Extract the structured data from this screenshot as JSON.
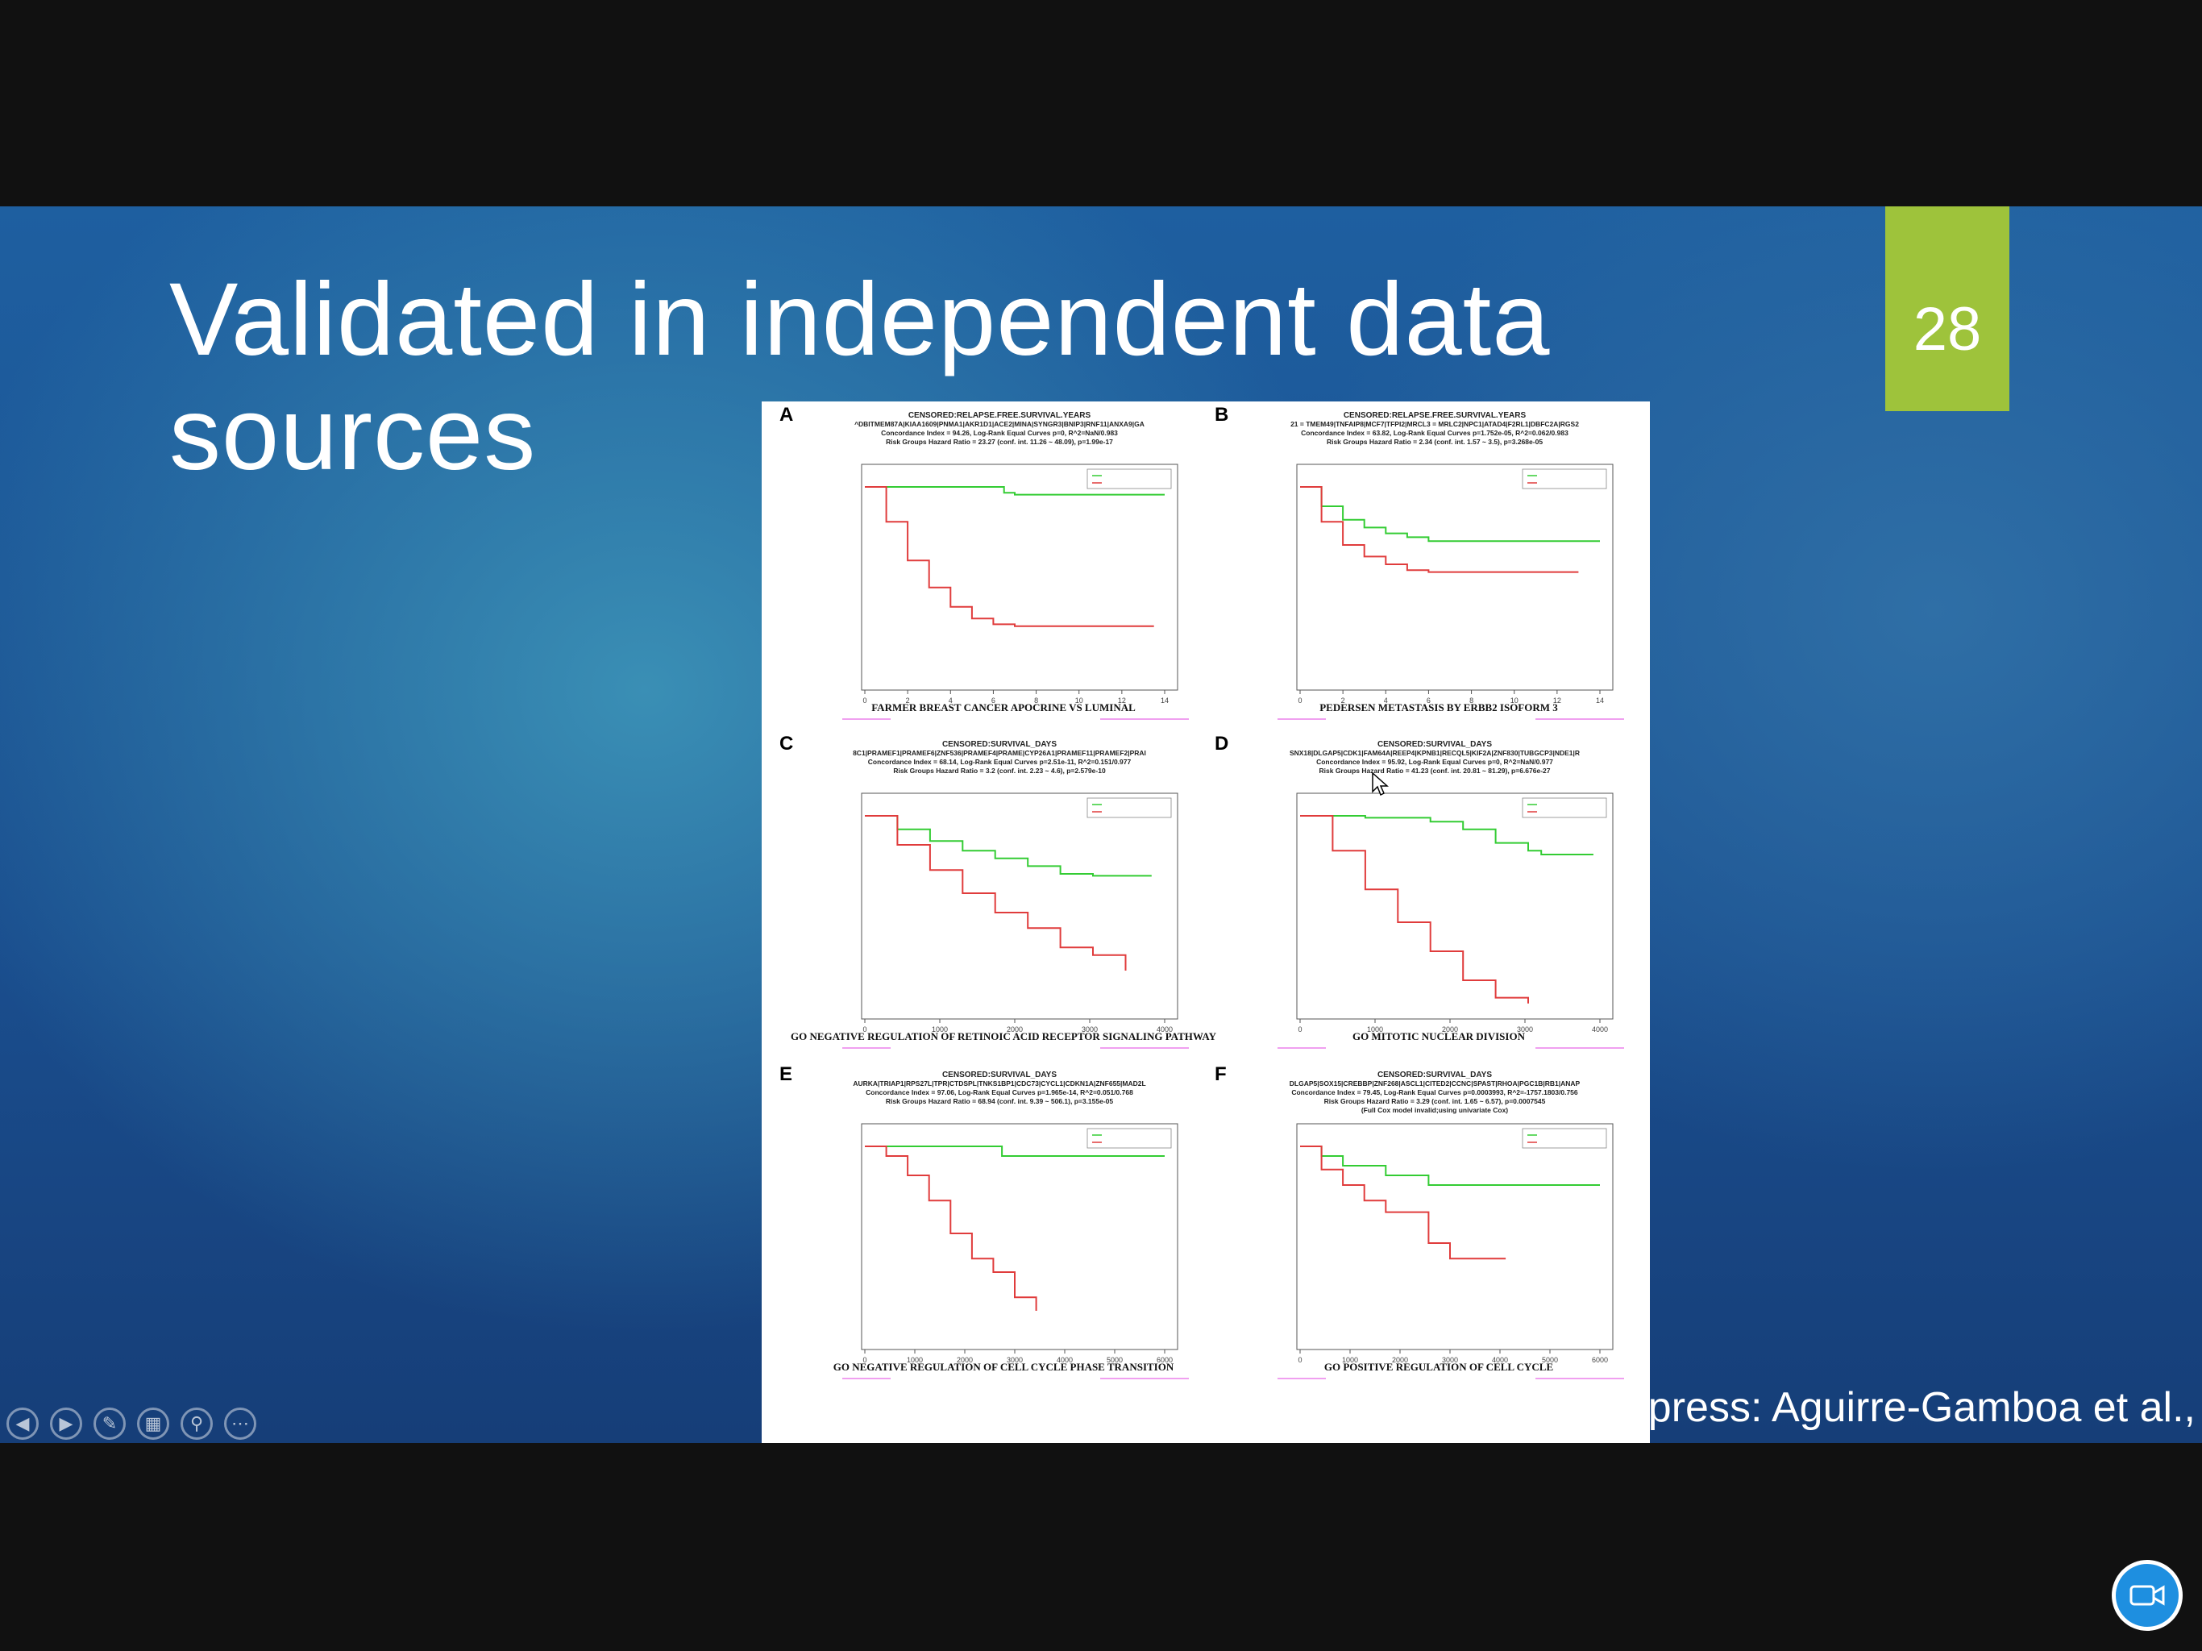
{
  "slide": {
    "title_line1": "Validated in independent data",
    "title_line2": "sources",
    "page_number": "28",
    "credit": "SurvExpress: Aguirre-Gamboa et al.,",
    "background_colors": [
      "#1e5fa0",
      "#3a8fb5",
      "#163e78"
    ],
    "accent_color": "#9ec33b"
  },
  "controls": [
    "previous-icon",
    "next-icon",
    "pen-icon",
    "slides-grid-icon",
    "zoom-icon",
    "more-icon"
  ],
  "camera_icon": "video-camera-icon",
  "figure": {
    "panels": [
      {
        "letter": "A",
        "header": [
          "CENSORED:RELAPSE.FREE.SURVIVAL.YEARS",
          "^DBITMEM87A|KIAA1609|PNMA1|AKR1D1|ACE2|MINA|SYNGR3|BNIP3|RNF11|ANXA9|GA",
          "Concordance Index = 94.26, Log-Rank Equal Curves p=0, R^2=NaN/0.983",
          "Risk Groups Hazard Ratio = 23.27 (conf. int. 11.26 ~ 48.09), p=1.99e-17"
        ],
        "x_ticks": [
          "0",
          "2",
          "4",
          "6",
          "8",
          "10",
          "12",
          "14"
        ],
        "caption": "FARMER BREAST CANCER APOCRINE VS LUMINAL"
      },
      {
        "letter": "B",
        "header": [
          "CENSORED:RELAPSE.FREE.SURVIVAL.YEARS",
          "21 = TMEM49|TNFAIP8|MCF7|TFPI2|MRCL3 = MRLC2|NPC1|ATAD4|F2RL1|DBFC2A|RGS2",
          "Concordance Index = 63.82, Log-Rank Equal Curves p=1.752e-05, R^2=0.062/0.983",
          "Risk Groups Hazard Ratio = 2.34 (conf. int. 1.57 ~ 3.5), p=3.268e-05"
        ],
        "x_ticks": [
          "0",
          "2",
          "4",
          "6",
          "8",
          "10",
          "12",
          "14"
        ],
        "caption": "PEDERSEN METASTASIS BY ERBB2 ISOFORM 3"
      },
      {
        "letter": "C",
        "header": [
          "CENSORED:SURVIVAL_DAYS",
          "8C1|PRAMEF1|PRAMEF6|ZNF536|PRAMEF4|PRAME|CYP26A1|PRAMEF11|PRAMEF2|PRAI",
          "Concordance Index = 68.14, Log-Rank Equal Curves p=2.51e-11, R^2=0.151/0.977",
          "Risk Groups Hazard Ratio = 3.2 (conf. int. 2.23 ~ 4.6), p=2.579e-10"
        ],
        "x_ticks": [
          "0",
          "1000",
          "2000",
          "3000",
          "4000"
        ],
        "caption": "GO NEGATIVE REGULATION OF RETINOIC ACID RECEPTOR SIGNALING PATHWAY"
      },
      {
        "letter": "D",
        "header": [
          "CENSORED:SURVIVAL_DAYS",
          "SNX18|DLGAP5|CDK1|FAM64A|REEP4|KPNB1|RECQL5|KIF2A|ZNF830|TUBGCP3|NDE1|R",
          "Concordance Index = 95.92, Log-Rank Equal Curves p=0, R^2=NaN/0.977",
          "Risk Groups Hazard Ratio = 41.23 (conf. int. 20.81 ~ 81.29), p=6.676e-27"
        ],
        "x_ticks": [
          "0",
          "1000",
          "2000",
          "3000",
          "4000"
        ],
        "caption": "GO MITOTIC NUCLEAR DIVISION"
      },
      {
        "letter": "E",
        "header": [
          "CENSORED:SURVIVAL_DAYS",
          "AURKA|TRIAP1|RPS27L|TPR|CTDSPL|TNKS1BP1|CDC73|CYCL1|CDKN1A|ZNF655|MAD2L",
          "Concordance Index = 97.06, Log-Rank Equal Curves p=1.965e-14, R^2=0.051/0.768",
          "Risk Groups Hazard Ratio = 68.94 (conf. int. 9.39 ~ 506.1), p=3.155e-05"
        ],
        "x_ticks": [
          "0",
          "1000",
          "2000",
          "3000",
          "4000",
          "5000",
          "6000"
        ],
        "caption": "GO NEGATIVE REGULATION OF CELL CYCLE PHASE TRANSITION"
      },
      {
        "letter": "F",
        "header": [
          "CENSORED:SURVIVAL_DAYS",
          "DLGAP5|SOX15|CREBBP|ZNF268|ASCL1|CITED2|CCNC|SPAST|RHOA|PGC1B|RB1|ANAP",
          "Concordance Index = 79.45, Log-Rank Equal Curves p=0.0003993, R^2=-1757.1803/0.756",
          "Risk Groups Hazard Ratio = 3.29 (conf. int. 1.65 ~ 6.57), p=0.0007545",
          "(Full Cox model invalid;using univariate Cox)"
        ],
        "x_ticks": [
          "0",
          "1000",
          "2000",
          "3000",
          "4000",
          "5000",
          "6000"
        ],
        "caption": "GO POSITIVE REGULATION OF CELL CYCLE"
      }
    ]
  },
  "chart_data": [
    {
      "type": "line",
      "panel": "A",
      "x_unit": "years",
      "xlim": [
        0,
        14
      ],
      "ylim": [
        0,
        1
      ],
      "series": [
        {
          "color": "#33cc33",
          "x": [
            0,
            5,
            6.5,
            7,
            14
          ],
          "values": [
            1.0,
            1.0,
            0.97,
            0.96,
            0.96
          ]
        },
        {
          "color": "#e03c3c",
          "x": [
            0,
            1,
            2,
            3,
            4,
            5,
            6,
            7,
            8,
            9,
            13.5
          ],
          "values": [
            1.0,
            0.82,
            0.62,
            0.48,
            0.38,
            0.32,
            0.29,
            0.28,
            0.28,
            0.28,
            0.28
          ]
        }
      ]
    },
    {
      "type": "line",
      "panel": "B",
      "x_unit": "years",
      "xlim": [
        0,
        14
      ],
      "ylim": [
        0,
        1
      ],
      "series": [
        {
          "color": "#33cc33",
          "x": [
            0,
            1,
            2,
            3,
            4,
            5,
            6,
            8,
            10,
            14
          ],
          "values": [
            1.0,
            0.9,
            0.83,
            0.79,
            0.76,
            0.74,
            0.72,
            0.72,
            0.72,
            0.72
          ]
        },
        {
          "color": "#e03c3c",
          "x": [
            0,
            1,
            2,
            3,
            4,
            5,
            6,
            8,
            10,
            13
          ],
          "values": [
            1.0,
            0.82,
            0.7,
            0.64,
            0.6,
            0.57,
            0.56,
            0.56,
            0.56,
            0.56
          ]
        }
      ]
    },
    {
      "type": "line",
      "panel": "C",
      "x_unit": "days",
      "xlim": [
        0,
        4600
      ],
      "ylim": [
        0,
        1
      ],
      "series": [
        {
          "color": "#33cc33",
          "x": [
            0,
            500,
            1000,
            1500,
            2000,
            2500,
            3000,
            3500,
            4400
          ],
          "values": [
            1.0,
            0.93,
            0.87,
            0.82,
            0.78,
            0.74,
            0.7,
            0.69,
            0.69
          ]
        },
        {
          "color": "#e03c3c",
          "x": [
            0,
            500,
            1000,
            1500,
            2000,
            2500,
            3000,
            3500,
            4000
          ],
          "values": [
            1.0,
            0.85,
            0.72,
            0.6,
            0.5,
            0.42,
            0.32,
            0.28,
            0.2
          ]
        }
      ]
    },
    {
      "type": "line",
      "panel": "D",
      "x_unit": "days",
      "xlim": [
        0,
        4600
      ],
      "ylim": [
        0,
        1
      ],
      "series": [
        {
          "color": "#33cc33",
          "x": [
            0,
            1000,
            2000,
            2500,
            3000,
            3500,
            3700,
            4500
          ],
          "values": [
            1.0,
            0.99,
            0.97,
            0.93,
            0.86,
            0.82,
            0.8,
            0.8
          ]
        },
        {
          "color": "#e03c3c",
          "x": [
            0,
            500,
            1000,
            1500,
            2000,
            2500,
            3000,
            3500
          ],
          "values": [
            1.0,
            0.82,
            0.62,
            0.45,
            0.3,
            0.15,
            0.06,
            0.03
          ]
        }
      ]
    },
    {
      "type": "line",
      "panel": "E",
      "x_unit": "days",
      "xlim": [
        0,
        7000
      ],
      "ylim": [
        0,
        1
      ],
      "series": [
        {
          "color": "#33cc33",
          "x": [
            0,
            3000,
            3200,
            4000,
            7000
          ],
          "values": [
            1.0,
            1.0,
            0.95,
            0.95,
            0.95
          ]
        },
        {
          "color": "#e03c3c",
          "x": [
            0,
            500,
            1000,
            1500,
            2000,
            2500,
            3000,
            3500,
            4000
          ],
          "values": [
            1.0,
            0.95,
            0.85,
            0.72,
            0.55,
            0.42,
            0.35,
            0.22,
            0.15
          ]
        }
      ]
    },
    {
      "type": "line",
      "panel": "F",
      "x_unit": "days",
      "xlim": [
        0,
        7000
      ],
      "ylim": [
        0,
        1
      ],
      "series": [
        {
          "color": "#33cc33",
          "x": [
            0,
            500,
            1000,
            2000,
            3000,
            4000,
            7000
          ],
          "values": [
            1.0,
            0.95,
            0.9,
            0.85,
            0.8,
            0.8,
            0.8
          ]
        },
        {
          "color": "#e03c3c",
          "x": [
            0,
            500,
            1000,
            1500,
            2000,
            3000,
            3500,
            4800
          ],
          "values": [
            1.0,
            0.88,
            0.8,
            0.72,
            0.66,
            0.5,
            0.42,
            0.42
          ]
        }
      ]
    }
  ]
}
